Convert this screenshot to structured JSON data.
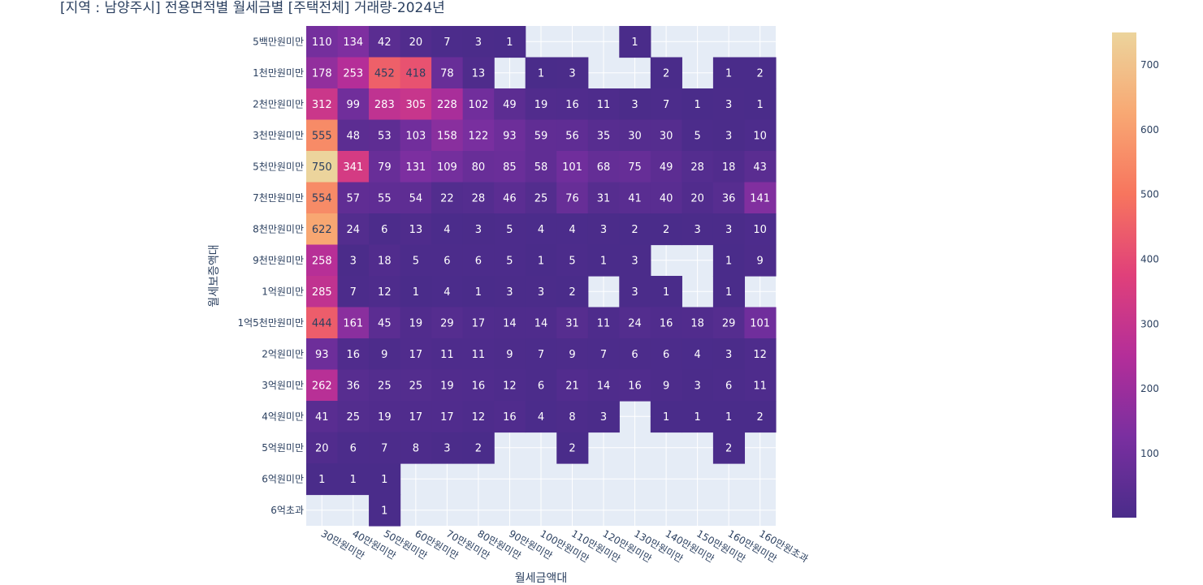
{
  "chart_data": {
    "type": "heatmap",
    "title": "[지역 : 남양주시] 전용면적별 월세금별 [주택전체] 거래량-2024년",
    "xlabel": "월세금액대",
    "ylabel": "월세보증액대",
    "x_categories": [
      "30만원미만",
      "40만원미만",
      "50만원미만",
      "60만원미만",
      "70만원미만",
      "80만원미만",
      "90만원미만",
      "100만원미만",
      "110만원미만",
      "120만원미만",
      "130만원미만",
      "140만원미만",
      "150만원미만",
      "160만원미만",
      "160만원초과"
    ],
    "y_categories": [
      "5백만원미만",
      "1천만원미만",
      "2천만원미만",
      "3천만원미만",
      "5천만원미만",
      "7천만원미만",
      "8천만원미만",
      "9천만원미만",
      "1억원미만",
      "1억5천만원미만",
      "2억원미만",
      "3억원미만",
      "4억원미만",
      "5억원미만",
      "6억원미만",
      "6억초과"
    ],
    "values": [
      [
        110,
        134,
        42,
        20,
        7,
        3,
        1,
        null,
        null,
        null,
        1,
        null,
        null,
        null,
        null
      ],
      [
        178,
        253,
        452,
        418,
        78,
        13,
        null,
        1,
        3,
        null,
        null,
        2,
        null,
        1,
        2
      ],
      [
        312,
        99,
        283,
        305,
        228,
        102,
        49,
        19,
        16,
        11,
        3,
        7,
        1,
        3,
        1
      ],
      [
        555,
        48,
        53,
        103,
        158,
        122,
        93,
        59,
        56,
        35,
        30,
        30,
        5,
        3,
        10
      ],
      [
        750,
        341,
        79,
        131,
        109,
        80,
        85,
        58,
        101,
        68,
        75,
        49,
        28,
        18,
        43
      ],
      [
        554,
        57,
        55,
        54,
        22,
        28,
        46,
        25,
        76,
        31,
        41,
        40,
        20,
        36,
        141
      ],
      [
        622,
        24,
        6,
        13,
        4,
        3,
        5,
        4,
        4,
        3,
        2,
        2,
        3,
        3,
        10
      ],
      [
        258,
        3,
        18,
        5,
        6,
        6,
        5,
        1,
        5,
        1,
        3,
        null,
        null,
        1,
        9
      ],
      [
        285,
        7,
        12,
        1,
        4,
        1,
        3,
        3,
        2,
        null,
        3,
        1,
        null,
        1,
        null
      ],
      [
        444,
        161,
        45,
        19,
        29,
        17,
        14,
        14,
        31,
        11,
        24,
        16,
        18,
        29,
        101
      ],
      [
        93,
        16,
        9,
        17,
        11,
        11,
        9,
        7,
        9,
        7,
        6,
        6,
        4,
        3,
        12
      ],
      [
        262,
        36,
        25,
        25,
        19,
        16,
        12,
        6,
        21,
        14,
        16,
        9,
        3,
        6,
        11
      ],
      [
        41,
        25,
        19,
        17,
        17,
        12,
        16,
        4,
        8,
        3,
        null,
        1,
        1,
        1,
        2
      ],
      [
        20,
        6,
        7,
        8,
        3,
        2,
        null,
        null,
        2,
        null,
        null,
        null,
        null,
        2,
        null
      ],
      [
        1,
        1,
        1,
        null,
        null,
        null,
        null,
        null,
        null,
        null,
        null,
        null,
        null,
        null,
        null
      ],
      [
        null,
        null,
        1,
        null,
        null,
        null,
        null,
        null,
        null,
        null,
        null,
        null,
        null,
        null,
        null
      ]
    ],
    "zmin": 1,
    "zmax": 750,
    "colorbar_ticks": [
      100,
      200,
      300,
      400,
      500,
      600,
      700
    ],
    "colorscale": [
      "#4a2c8a",
      "#7a2fa0",
      "#b42e99",
      "#e0407a",
      "#f7755e",
      "#f8a873",
      "#ecd49c"
    ],
    "plot_background": "#e5ecf6",
    "grid_color": "#ffffff"
  }
}
